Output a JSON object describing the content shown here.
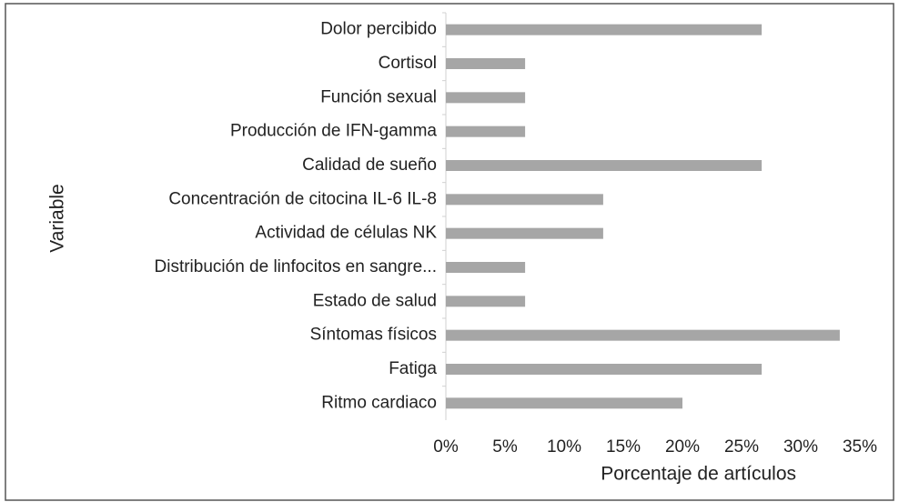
{
  "chart_data": {
    "type": "barh",
    "x_label": "Porcentaje de artículos",
    "y_label": "Variable",
    "categories": [
      "Dolor percibido",
      "Cortisol",
      "Función sexual",
      "Producción de IFN-gamma",
      "Calidad de sueño",
      "Concentración de citocina IL-6 IL-8",
      "Actividad de células NK",
      "Distribución de linfocitos en sangre...",
      "Estado de salud",
      "Síntomas físicos",
      "Fatiga",
      "Ritmo cardiaco"
    ],
    "values": [
      26.7,
      6.7,
      6.7,
      6.7,
      26.7,
      13.3,
      13.3,
      6.7,
      6.7,
      33.3,
      26.7,
      20
    ],
    "color": "#a6a6a6",
    "xlim": [
      0,
      35
    ],
    "xticks": [
      {
        "value": 0,
        "label": "0%"
      },
      {
        "value": 5,
        "label": "5%"
      },
      {
        "value": 10,
        "label": "10%"
      },
      {
        "value": 15,
        "label": "15%"
      },
      {
        "value": 20,
        "label": "20%"
      },
      {
        "value": 25,
        "label": "25%"
      },
      {
        "value": 30,
        "label": "30%"
      },
      {
        "value": 35,
        "label": "35%"
      }
    ],
    "grid": false
  }
}
